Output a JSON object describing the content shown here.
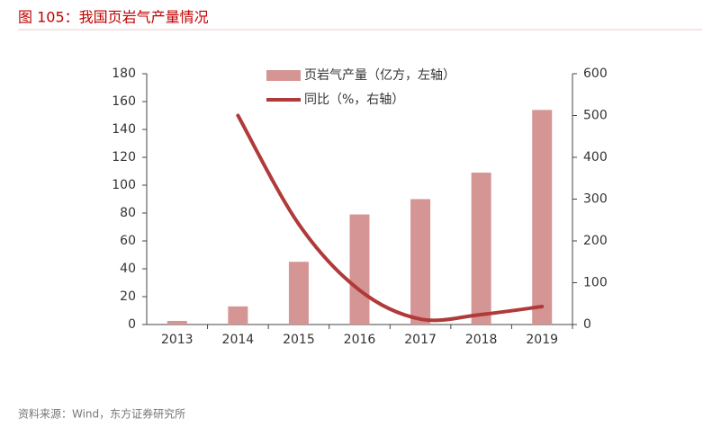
{
  "title": "图 105：我国页岩气产量情况",
  "source": "资料来源：Wind，东方证券研究所",
  "chart_data": {
    "type": "bar-line",
    "categories": [
      "2013",
      "2014",
      "2015",
      "2016",
      "2017",
      "2018",
      "2019"
    ],
    "series": [
      {
        "name": "页岩气产量（亿方，左轴）",
        "type": "bar",
        "color": "#d49594",
        "values": [
          2.6,
          13,
          45,
          79,
          90,
          109,
          154
        ]
      },
      {
        "name": "同比（%，右轴）",
        "type": "line",
        "axis": "y2",
        "color": "#b03a3a",
        "values": [
          null,
          500,
          240,
          82,
          13,
          24,
          43
        ]
      }
    ],
    "ylim": [
      0,
      180
    ],
    "yticks": [
      0,
      20,
      40,
      60,
      80,
      100,
      120,
      140,
      160,
      180
    ],
    "y2lim": [
      0,
      600
    ],
    "y2ticks": [
      0,
      100,
      200,
      300,
      400,
      500,
      600
    ]
  }
}
